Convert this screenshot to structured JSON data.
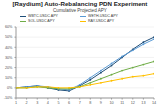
{
  "chart_data": {
    "type": "line",
    "title": "[Raydium] Auto-Rebalancing PDN Experiment",
    "subtitle": "Cumulative Projected APY",
    "x": [
      1,
      2,
      3,
      4,
      5,
      6,
      7,
      8,
      9,
      10,
      11,
      12,
      13,
      14
    ],
    "xlim": [
      1,
      14
    ],
    "xticks": [
      1,
      2,
      3,
      4,
      5,
      6,
      7,
      8,
      9,
      10,
      11,
      12,
      13,
      14
    ],
    "ylim": [
      -10,
      60
    ],
    "yticks": [
      {
        "value": -10,
        "label": "-10%"
      },
      {
        "value": 0,
        "label": "0%"
      },
      {
        "value": 10,
        "label": "10%"
      },
      {
        "value": 20,
        "label": "20%"
      },
      {
        "value": 30,
        "label": "30%"
      },
      {
        "value": 40,
        "label": "40%"
      },
      {
        "value": 50,
        "label": "50%"
      },
      {
        "value": 60,
        "label": "60%"
      }
    ],
    "grid": true,
    "marker": "circle",
    "series": [
      {
        "name": "WBTC-USDC APY",
        "color": "#1f4e79",
        "values": [
          0,
          1,
          2,
          0,
          -2,
          -3,
          2,
          8,
          15,
          22,
          30,
          38,
          45,
          50
        ]
      },
      {
        "name": "WETH-USDC APY",
        "color": "#5b9bd5",
        "values": [
          0,
          1,
          2,
          1,
          -1,
          -2,
          3,
          10,
          17,
          24,
          31,
          37,
          43,
          48
        ]
      },
      {
        "name": "SOL-USDC APY",
        "color": "#70ad47",
        "values": [
          0,
          0,
          1,
          0,
          -1,
          -1,
          1,
          5,
          9,
          13,
          17,
          20,
          23,
          26
        ]
      },
      {
        "name": "RAY-USDC APY",
        "color": "#ffc000",
        "values": [
          0,
          0,
          1,
          1,
          0,
          0,
          1,
          3,
          5,
          7,
          9,
          11,
          12,
          14
        ]
      }
    ]
  }
}
